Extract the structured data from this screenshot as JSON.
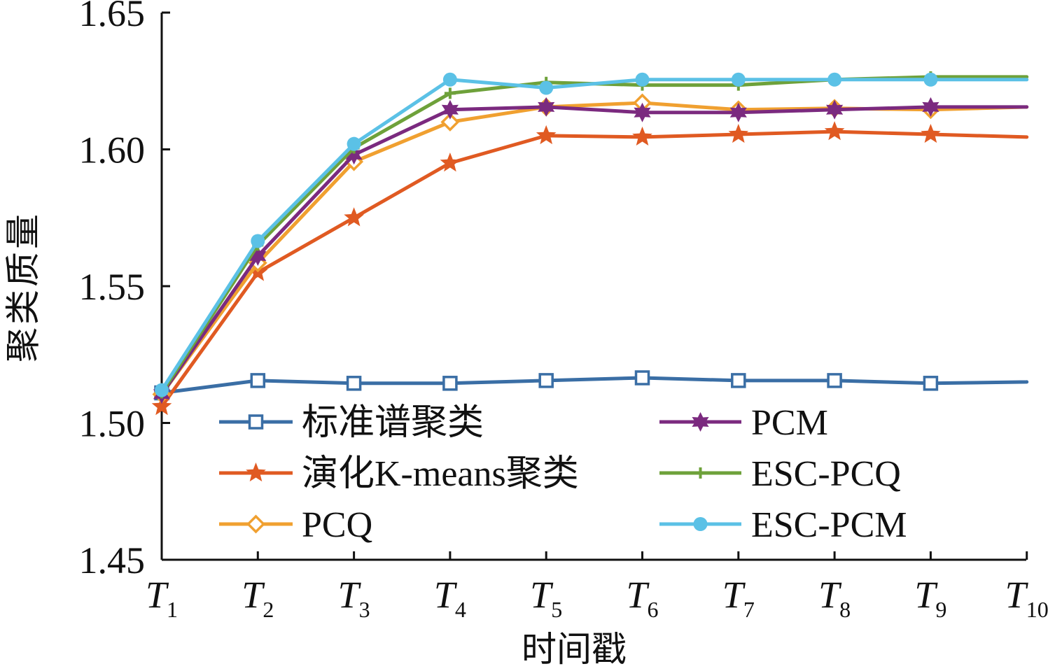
{
  "chart_data": {
    "type": "line",
    "xlabel": "时间戳",
    "ylabel": "聚类质量",
    "categories": [
      {
        "main": "T",
        "sub": "1"
      },
      {
        "main": "T",
        "sub": "2"
      },
      {
        "main": "T",
        "sub": "3"
      },
      {
        "main": "T",
        "sub": "4"
      },
      {
        "main": "T",
        "sub": "5"
      },
      {
        "main": "T",
        "sub": "6"
      },
      {
        "main": "T",
        "sub": "7"
      },
      {
        "main": "T",
        "sub": "8"
      },
      {
        "main": "T",
        "sub": "9"
      },
      {
        "main": "T",
        "sub": "10"
      }
    ],
    "ylim": [
      1.45,
      1.65
    ],
    "yticks": [
      "1.45",
      "1.50",
      "1.55",
      "1.60",
      "1.65"
    ],
    "grid": false,
    "legend_position": "bottom",
    "series": [
      {
        "name": "标准谱聚类",
        "color": "#3a6ea5",
        "marker": "square",
        "values": [
          1.511,
          1.5155,
          1.5145,
          1.5145,
          1.5155,
          1.5165,
          1.5155,
          1.5155,
          1.5145,
          1.515
        ]
      },
      {
        "name": "演化K-means聚类",
        "color": "#e05a22",
        "marker": "star",
        "values": [
          1.506,
          1.555,
          1.575,
          1.595,
          1.605,
          1.6045,
          1.6055,
          1.6065,
          1.6055,
          1.6045
        ]
      },
      {
        "name": "PCQ",
        "color": "#f0a030",
        "marker": "diamond",
        "values": [
          1.5105,
          1.5585,
          1.5955,
          1.61,
          1.6155,
          1.617,
          1.6145,
          1.615,
          1.6145,
          1.6155
        ]
      },
      {
        "name": "PCM",
        "color": "#7b2a7f",
        "marker": "star6",
        "values": [
          1.5105,
          1.561,
          1.598,
          1.6145,
          1.6155,
          1.6135,
          1.6135,
          1.6145,
          1.6155,
          1.6155
        ]
      },
      {
        "name": "ESC-PCQ",
        "color": "#6ea13a",
        "marker": "plus",
        "values": [
          1.511,
          1.565,
          1.6005,
          1.6205,
          1.6245,
          1.6235,
          1.6235,
          1.6255,
          1.6265,
          1.6265
        ]
      },
      {
        "name": "ESC-PCM",
        "color": "#5bc1e6",
        "marker": "circle",
        "values": [
          1.512,
          1.5665,
          1.602,
          1.6255,
          1.6225,
          1.6255,
          1.6255,
          1.6255,
          1.6255,
          1.6255
        ]
      }
    ]
  }
}
